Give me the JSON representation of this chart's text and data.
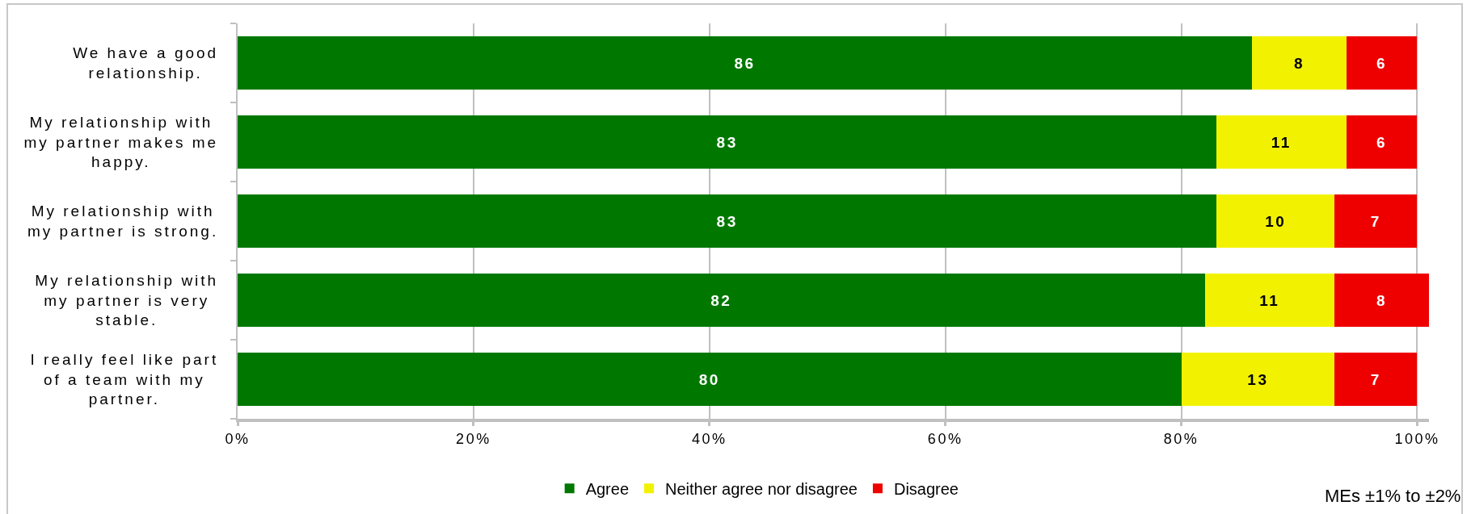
{
  "chart_data": {
    "type": "bar",
    "orientation": "horizontal",
    "stacked": true,
    "categories": [
      "We have a good\nrelationship.",
      "My relationship with\nmy partner makes me\nhappy.",
      "My relationship with\nmy partner is strong.",
      "My relationship with\nmy partner is very\nstable.",
      "I really feel like part\nof a team with my\npartner."
    ],
    "series": [
      {
        "name": "Agree",
        "color": "#007800",
        "values": [
          86,
          83,
          83,
          82,
          80
        ]
      },
      {
        "name": "Neither agree nor disagree",
        "color": "#f2f200",
        "values": [
          8,
          11,
          10,
          11,
          13
        ]
      },
      {
        "name": "Disagree",
        "color": "#ee0000",
        "values": [
          6,
          6,
          7,
          8,
          7
        ]
      }
    ],
    "xlim": [
      0,
      101
    ],
    "xticks": [
      {
        "value": 0,
        "label": "0%"
      },
      {
        "value": 20,
        "label": "20%"
      },
      {
        "value": 40,
        "label": "40%"
      },
      {
        "value": 60,
        "label": "60%"
      },
      {
        "value": 80,
        "label": "80%"
      },
      {
        "value": 100,
        "label": "100%"
      }
    ],
    "data_labels": true,
    "grid": "x",
    "legend": "bottom",
    "annotations": [
      "MEs ±1% to ±2%"
    ]
  }
}
